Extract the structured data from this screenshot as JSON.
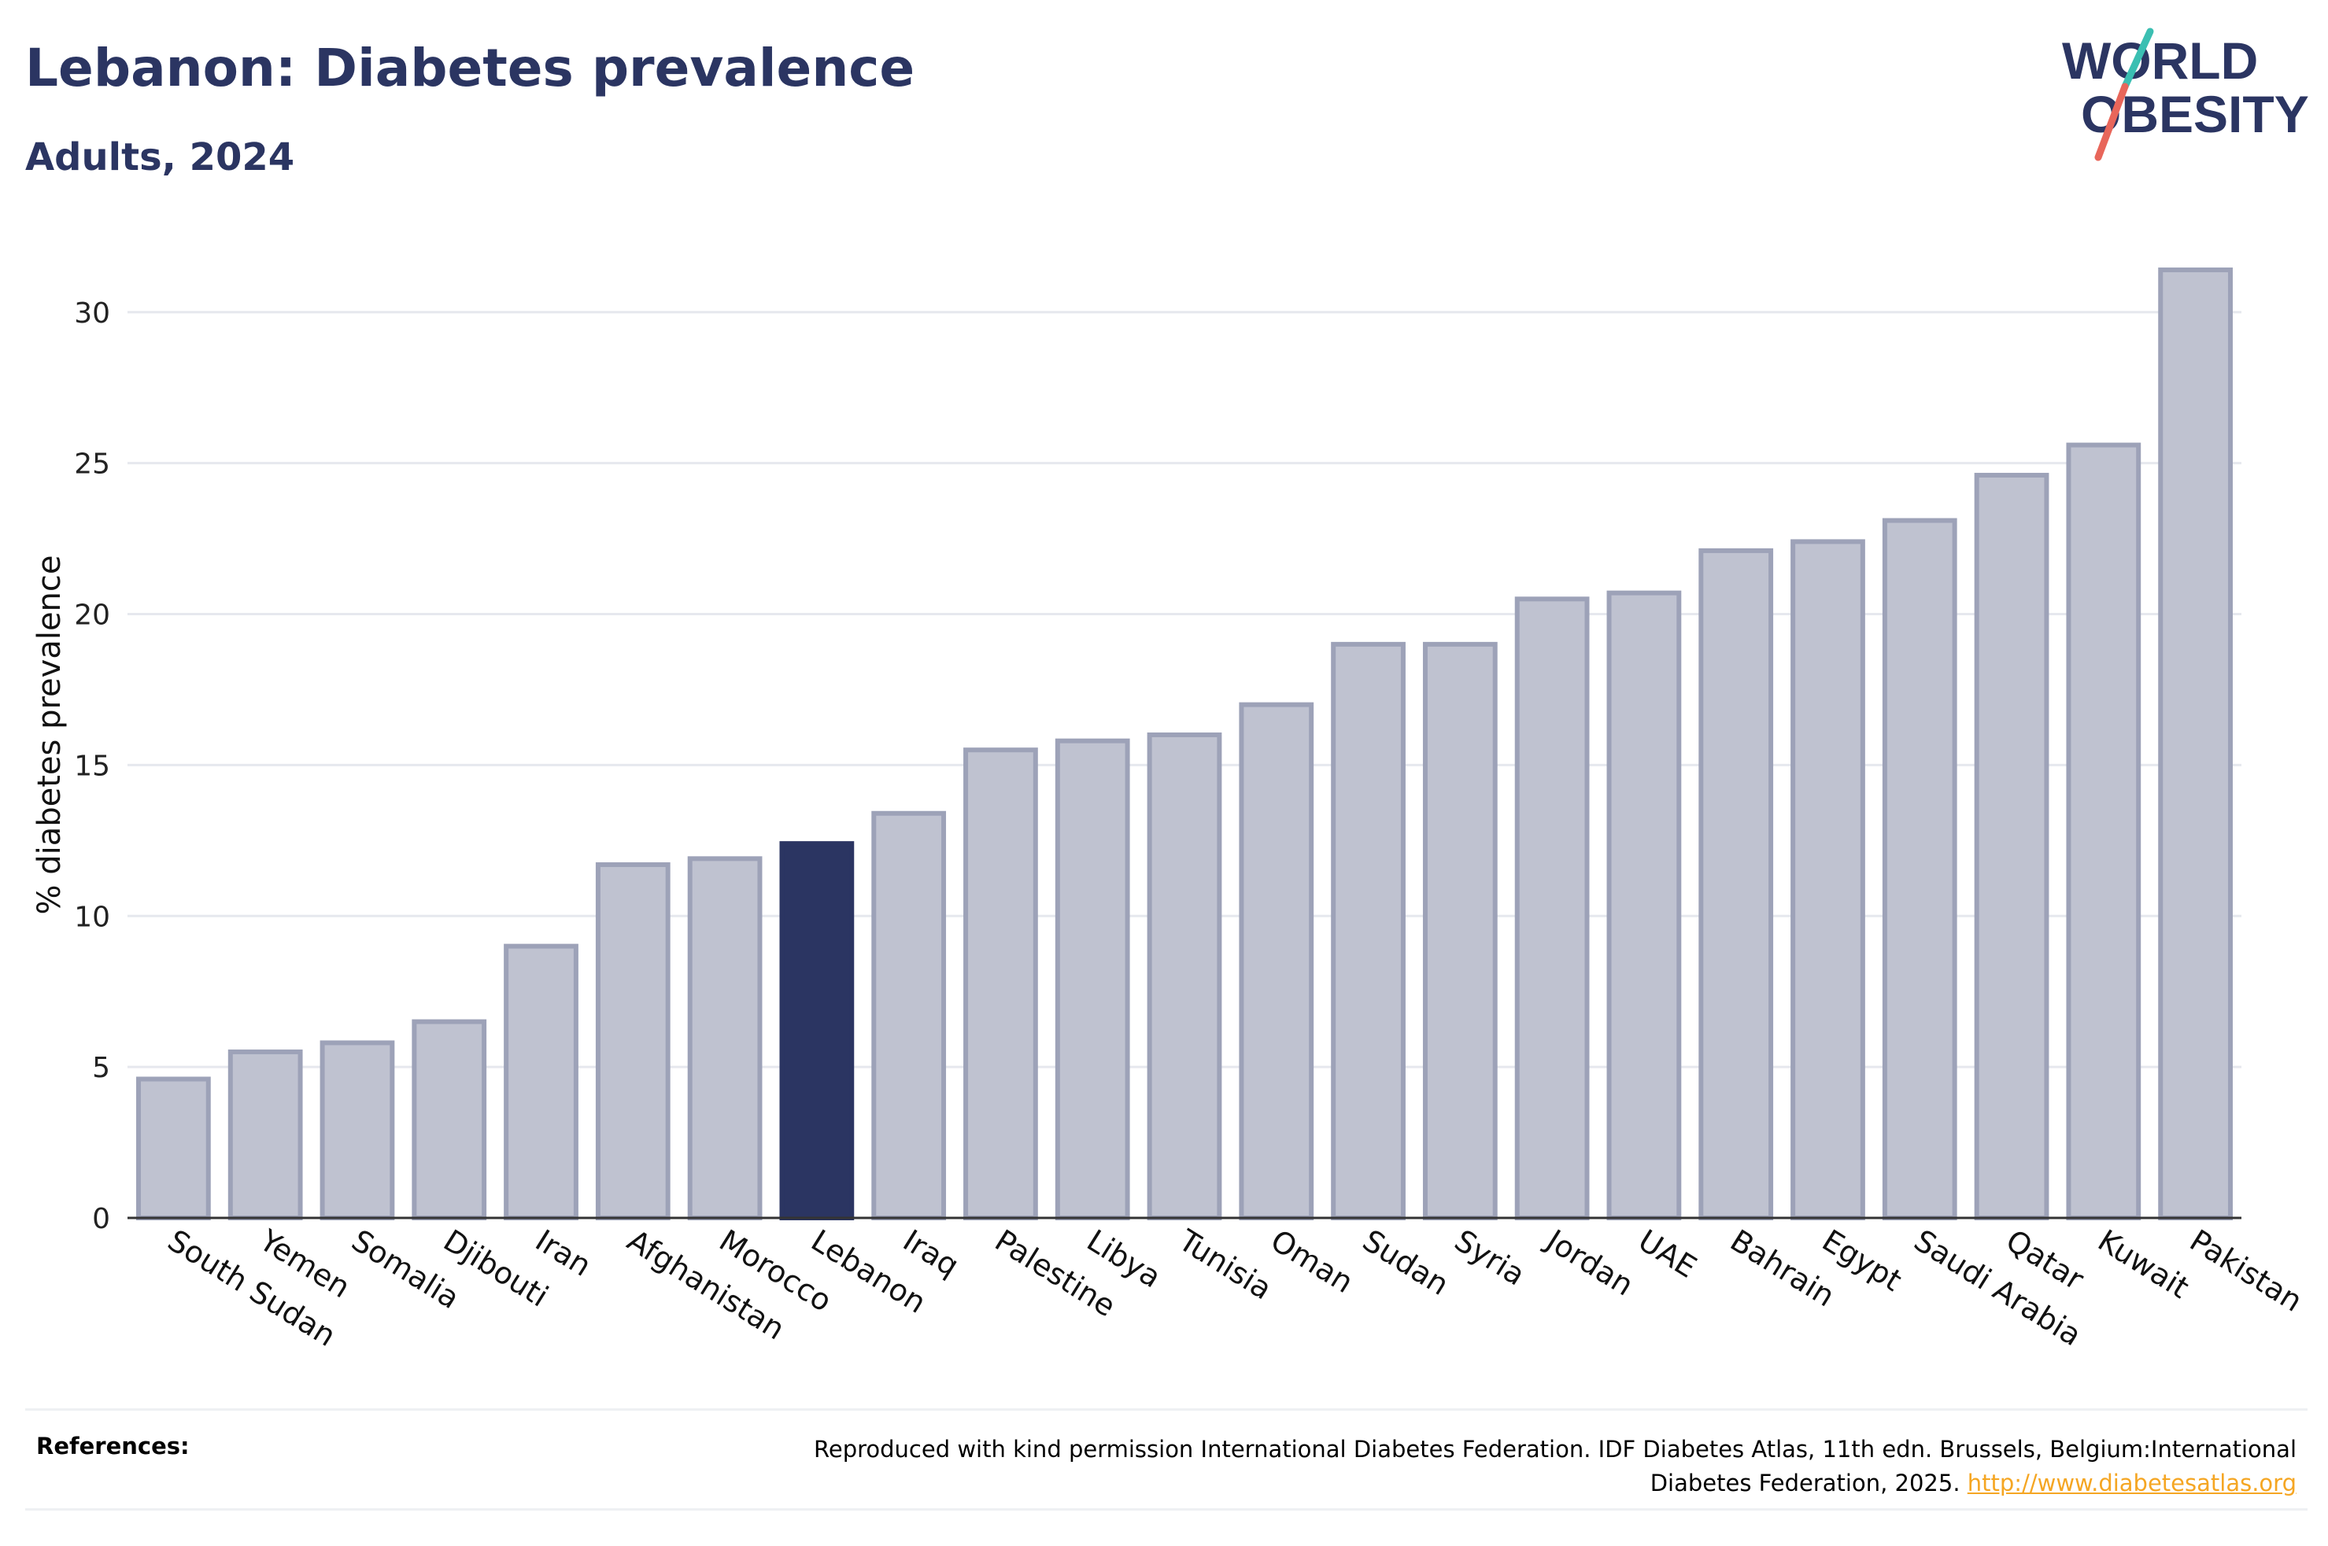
{
  "header": {
    "title": "Lebanon: Diabetes prevalence",
    "subtitle": "Adults, 2024"
  },
  "logo": {
    "line1": "WORLD",
    "line2": "OBESITY"
  },
  "chart_data": {
    "type": "bar",
    "ylabel": "% diabetes prevalence",
    "xlabel": "",
    "ylim": [
      0,
      32
    ],
    "yticks": [
      0,
      5,
      10,
      15,
      20,
      25,
      30
    ],
    "grid": true,
    "highlight": "Lebanon",
    "colors": {
      "bar": "#bfc2d0",
      "bar_stroke": "#9da2b8",
      "highlight": "#2b3562",
      "grid": "#e6e8ee",
      "axis": "#333333"
    },
    "categories": [
      "South Sudan",
      "Yemen",
      "Somalia",
      "Djibouti",
      "Iran",
      "Afghanistan",
      "Morocco",
      "Lebanon",
      "Iraq",
      "Palestine",
      "Libya",
      "Tunisia",
      "Oman",
      "Sudan",
      "Syria",
      "Jordan",
      "UAE",
      "Bahrain",
      "Egypt",
      "Saudi Arabia",
      "Qatar",
      "Kuwait",
      "Pakistan"
    ],
    "values": [
      4.6,
      5.5,
      5.8,
      6.5,
      9.0,
      11.7,
      11.9,
      12.4,
      13.4,
      15.5,
      15.8,
      16.0,
      17.0,
      19.0,
      19.0,
      20.5,
      20.7,
      22.1,
      22.4,
      23.1,
      24.6,
      25.6,
      31.4
    ]
  },
  "references": {
    "label": "References:",
    "text": "Reproduced with kind permission International Diabetes Federation. IDF Diabetes Atlas, 11th edn. Brussels, Belgium:International Diabetes Federation, 2025.",
    "link": "http://www.diabetesatlas.org"
  }
}
